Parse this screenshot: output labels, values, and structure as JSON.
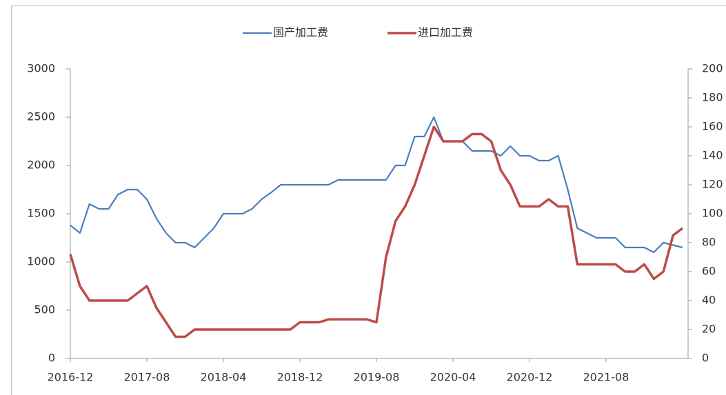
{
  "chart_data": {
    "type": "line",
    "categories": [
      "2016-12",
      null,
      null,
      null,
      null,
      null,
      null,
      null,
      "2017-08",
      null,
      null,
      null,
      null,
      null,
      null,
      null,
      "2018-04",
      null,
      null,
      null,
      null,
      null,
      null,
      null,
      "2018-12",
      null,
      null,
      null,
      null,
      null,
      null,
      null,
      "2019-08",
      null,
      null,
      null,
      null,
      null,
      null,
      null,
      "2020-04",
      null,
      null,
      null,
      null,
      null,
      null,
      null,
      "2020-12",
      null,
      null,
      null,
      null,
      null,
      null,
      null,
      "2021-08",
      null,
      null,
      null,
      null,
      null,
      null,
      null,
      null
    ],
    "series": [
      {
        "name": "国产加工费",
        "color": "#4a7ebb",
        "values": [
          1380,
          1300,
          1600,
          1550,
          1550,
          1700,
          1750,
          1750,
          1650,
          1450,
          1300,
          1200,
          1200,
          1150,
          1250,
          1350,
          1500,
          1500,
          1500,
          1550,
          1650,
          1720,
          1800,
          1800,
          1800,
          1800,
          1800,
          1800,
          1850,
          1850,
          1850,
          1850,
          1850,
          1850,
          2000,
          2000,
          2300,
          2300,
          2500,
          2250,
          2250,
          2250,
          2150,
          2150,
          2150,
          2100,
          2200,
          2100,
          2100,
          2050,
          2050,
          2100,
          1750,
          1350,
          1300,
          1250,
          1250,
          1250,
          1150,
          1150,
          1150,
          1100,
          1200,
          1175,
          1150
        ]
      },
      {
        "name": "进口加工费",
        "color": "#be4b48",
        "axis": "y2",
        "values": [
          72,
          50,
          40,
          40,
          40,
          40,
          40,
          45,
          50,
          35,
          25,
          15,
          15,
          20,
          20,
          20,
          20,
          20,
          20,
          20,
          20,
          20,
          20,
          20,
          25,
          25,
          25,
          27,
          27,
          27,
          27,
          27,
          25,
          70,
          95,
          105,
          120,
          140,
          160,
          150,
          150,
          150,
          155,
          155,
          150,
          130,
          120,
          105,
          105,
          105,
          110,
          105,
          105,
          65,
          65,
          65,
          65,
          65,
          60,
          60,
          65,
          55,
          60,
          85,
          90
        ]
      }
    ],
    "ylim": [
      0,
      3000
    ],
    "yticks": [
      0,
      500,
      1000,
      1500,
      2000,
      2500,
      3000
    ],
    "y2lim": [
      0,
      200
    ],
    "y2ticks": [
      0,
      20,
      40,
      60,
      80,
      100,
      120,
      140,
      160,
      180,
      200
    ],
    "legend": "top"
  }
}
